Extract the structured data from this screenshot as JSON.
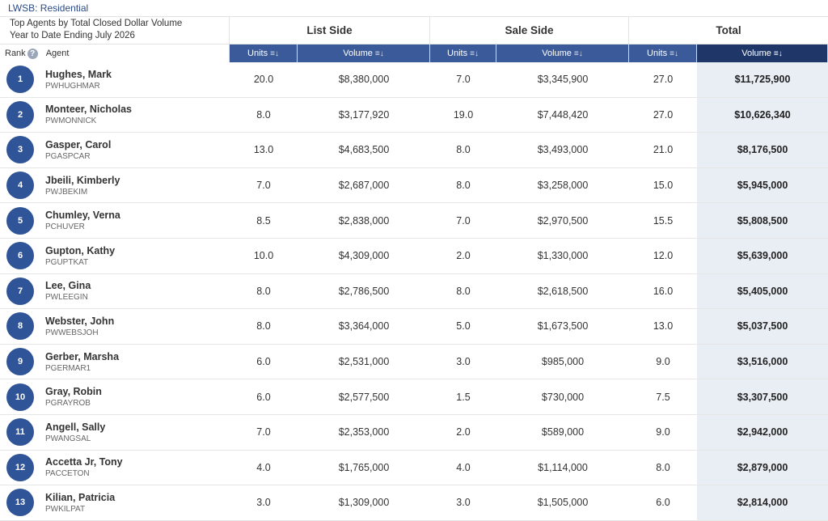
{
  "breadcrumb": "LWSB: Residential",
  "subtitle_line1": "Top Agents by Total Closed Dollar Volume",
  "subtitle_line2": "Year to Date Ending July 2026",
  "groups": {
    "list": "List Side",
    "sale": "Sale Side",
    "total": "Total"
  },
  "labels": {
    "rank": "Rank",
    "agent": "Agent",
    "help": "?"
  },
  "columns": {
    "units": "Units",
    "volume": "Volume"
  },
  "icons": {
    "sort": "sort-icon",
    "sort_active": "sort-active-icon",
    "help": "help-icon"
  },
  "rows": [
    {
      "rank": "1",
      "name": "Hughes, Mark",
      "code": "PWHUGHMAR",
      "list_units": "20.0",
      "list_volume": "$8,380,000",
      "sale_units": "7.0",
      "sale_volume": "$3,345,900",
      "total_units": "27.0",
      "total_volume": "$11,725,900"
    },
    {
      "rank": "2",
      "name": "Monteer, Nicholas",
      "code": "PWMONNICK",
      "list_units": "8.0",
      "list_volume": "$3,177,920",
      "sale_units": "19.0",
      "sale_volume": "$7,448,420",
      "total_units": "27.0",
      "total_volume": "$10,626,340"
    },
    {
      "rank": "3",
      "name": "Gasper, Carol",
      "code": "PGASPCAR",
      "list_units": "13.0",
      "list_volume": "$4,683,500",
      "sale_units": "8.0",
      "sale_volume": "$3,493,000",
      "total_units": "21.0",
      "total_volume": "$8,176,500"
    },
    {
      "rank": "4",
      "name": "Jbeili, Kimberly",
      "code": "PWJBEKIM",
      "list_units": "7.0",
      "list_volume": "$2,687,000",
      "sale_units": "8.0",
      "sale_volume": "$3,258,000",
      "total_units": "15.0",
      "total_volume": "$5,945,000"
    },
    {
      "rank": "5",
      "name": "Chumley, Verna",
      "code": "PCHUVER",
      "list_units": "8.5",
      "list_volume": "$2,838,000",
      "sale_units": "7.0",
      "sale_volume": "$2,970,500",
      "total_units": "15.5",
      "total_volume": "$5,808,500"
    },
    {
      "rank": "6",
      "name": "Gupton, Kathy",
      "code": "PGUPTKAT",
      "list_units": "10.0",
      "list_volume": "$4,309,000",
      "sale_units": "2.0",
      "sale_volume": "$1,330,000",
      "total_units": "12.0",
      "total_volume": "$5,639,000"
    },
    {
      "rank": "7",
      "name": "Lee, Gina",
      "code": "PWLEEGIN",
      "list_units": "8.0",
      "list_volume": "$2,786,500",
      "sale_units": "8.0",
      "sale_volume": "$2,618,500",
      "total_units": "16.0",
      "total_volume": "$5,405,000"
    },
    {
      "rank": "8",
      "name": "Webster, John",
      "code": "PWWEBSJOH",
      "list_units": "8.0",
      "list_volume": "$3,364,000",
      "sale_units": "5.0",
      "sale_volume": "$1,673,500",
      "total_units": "13.0",
      "total_volume": "$5,037,500"
    },
    {
      "rank": "9",
      "name": "Gerber, Marsha",
      "code": "PGERMAR1",
      "list_units": "6.0",
      "list_volume": "$2,531,000",
      "sale_units": "3.0",
      "sale_volume": "$985,000",
      "total_units": "9.0",
      "total_volume": "$3,516,000"
    },
    {
      "rank": "10",
      "name": "Gray, Robin",
      "code": "PGRAYROB",
      "list_units": "6.0",
      "list_volume": "$2,577,500",
      "sale_units": "1.5",
      "sale_volume": "$730,000",
      "total_units": "7.5",
      "total_volume": "$3,307,500"
    },
    {
      "rank": "11",
      "name": "Angell, Sally",
      "code": "PWANGSAL",
      "list_units": "7.0",
      "list_volume": "$2,353,000",
      "sale_units": "2.0",
      "sale_volume": "$589,000",
      "total_units": "9.0",
      "total_volume": "$2,942,000"
    },
    {
      "rank": "12",
      "name": "Accetta Jr, Tony",
      "code": "PACCETON",
      "list_units": "4.0",
      "list_volume": "$1,765,000",
      "sale_units": "4.0",
      "sale_volume": "$1,114,000",
      "total_units": "8.0",
      "total_volume": "$2,879,000"
    },
    {
      "rank": "13",
      "name": "Kilian, Patricia",
      "code": "PWKILPAT",
      "list_units": "3.0",
      "list_volume": "$1,309,000",
      "sale_units": "3.0",
      "sale_volume": "$1,505,000",
      "total_units": "6.0",
      "total_volume": "$2,814,000"
    }
  ]
}
